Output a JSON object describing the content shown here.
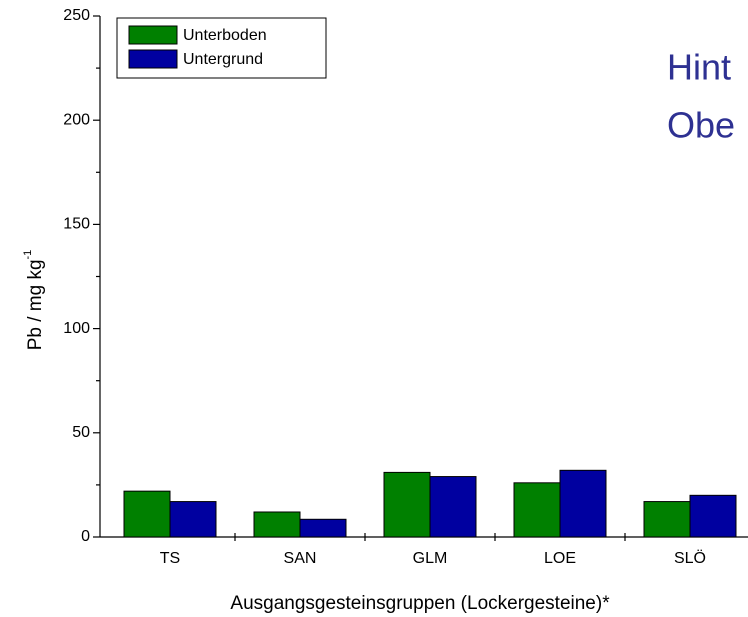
{
  "chart_data": {
    "type": "bar",
    "title_lines": [
      "Hint",
      "Obe"
    ],
    "xlabel": "Ausgangsgesteinsgruppen (Lockergesteine)*",
    "ylabel": "Pb / mg kg",
    "ylabel_sup": "-1",
    "categories": [
      "TS",
      "SAN",
      "GLM",
      "LOE",
      "SLÖ"
    ],
    "series": [
      {
        "name": "Unterboden",
        "color": "#008000",
        "values": [
          22,
          12,
          31,
          26,
          17
        ]
      },
      {
        "name": "Untergrund",
        "color": "#0000a0",
        "values": [
          17,
          8.5,
          29,
          32,
          20
        ]
      }
    ],
    "ylim": [
      0,
      250
    ],
    "yticks": [
      0,
      50,
      100,
      150,
      200,
      250
    ],
    "yminor": [
      25,
      75,
      125,
      175,
      225
    ],
    "legend": "upper left"
  }
}
